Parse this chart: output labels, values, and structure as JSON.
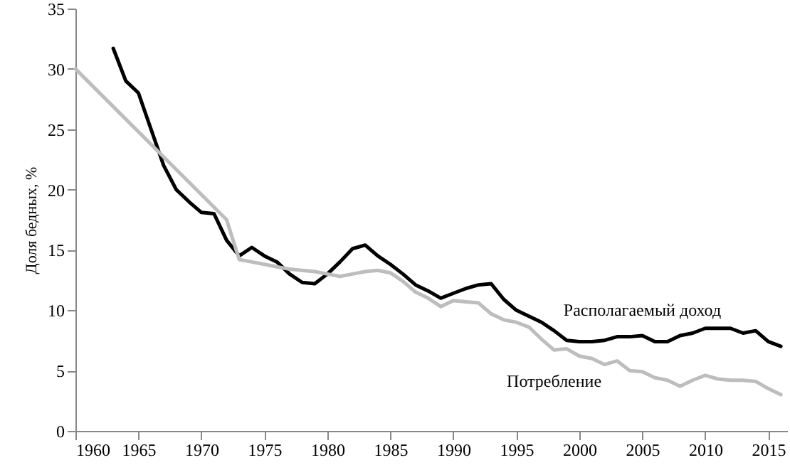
{
  "chart_data": {
    "type": "line",
    "ylabel": "Доля бедных, %",
    "xlim": [
      1960,
      2016.5
    ],
    "xticks": [
      1960,
      1965,
      1970,
      1975,
      1980,
      1985,
      1990,
      1995,
      2000,
      2005,
      2010,
      2015
    ],
    "ylim": [
      0,
      35
    ],
    "yticks": [
      0,
      5,
      10,
      15,
      20,
      25,
      30,
      35
    ],
    "grid": false,
    "series": [
      {
        "name": "Располагаемый доход",
        "color": "#000000",
        "x": [
          1963,
          1964,
          1965,
          1966,
          1967,
          1968,
          1969,
          1970,
          1971,
          1972,
          1973,
          1974,
          1975,
          1976,
          1977,
          1978,
          1979,
          1980,
          1981,
          1982,
          1983,
          1984,
          1985,
          1986,
          1987,
          1988,
          1989,
          1990,
          1991,
          1992,
          1993,
          1994,
          1995,
          1996,
          1997,
          1998,
          1999,
          2000,
          2001,
          2002,
          2003,
          2004,
          2005,
          2006,
          2007,
          2008,
          2009,
          2010,
          2011,
          2012,
          2013,
          2014,
          2015,
          2016
        ],
        "values": [
          31.7,
          29.0,
          28.0,
          25.0,
          22.0,
          20.0,
          19.0,
          18.1,
          18.0,
          15.8,
          14.5,
          15.2,
          14.5,
          14.0,
          13.0,
          12.3,
          12.2,
          13.0,
          14.0,
          15.1,
          15.4,
          14.5,
          13.8,
          13.0,
          12.1,
          11.6,
          11.0,
          11.4,
          11.8,
          12.1,
          12.2,
          10.9,
          10.0,
          9.5,
          9.0,
          8.3,
          7.5,
          7.4,
          7.4,
          7.5,
          7.8,
          7.8,
          7.9,
          7.4,
          7.4,
          7.9,
          8.1,
          8.5,
          8.5,
          8.5,
          8.1,
          8.3,
          7.4,
          7.0
        ]
      },
      {
        "name": "Потребление",
        "color": "#bdbdbd",
        "x": [
          1960,
          1972,
          1973,
          1974,
          1975,
          1976,
          1977,
          1978,
          1979,
          1980,
          1981,
          1982,
          1983,
          1984,
          1985,
          1986,
          1987,
          1988,
          1989,
          1990,
          1991,
          1992,
          1993,
          1994,
          1995,
          1996,
          1997,
          1998,
          1999,
          2000,
          2001,
          2002,
          2003,
          2004,
          2005,
          2006,
          2007,
          2008,
          2009,
          2010,
          2011,
          2012,
          2013,
          2014,
          2015,
          2016
        ],
        "values": [
          30.0,
          17.5,
          14.2,
          14.0,
          13.8,
          13.6,
          13.4,
          13.3,
          13.2,
          13.0,
          12.8,
          13.0,
          13.2,
          13.3,
          13.1,
          12.4,
          11.5,
          11.0,
          10.3,
          10.8,
          10.7,
          10.6,
          9.7,
          9.2,
          9.0,
          8.6,
          7.6,
          6.7,
          6.8,
          6.2,
          6.0,
          5.5,
          5.8,
          5.0,
          4.9,
          4.4,
          4.2,
          3.7,
          4.2,
          4.6,
          4.3,
          4.2,
          4.2,
          4.1,
          3.5,
          3.0
        ]
      }
    ],
    "marker": "none",
    "line_style": "solid"
  }
}
